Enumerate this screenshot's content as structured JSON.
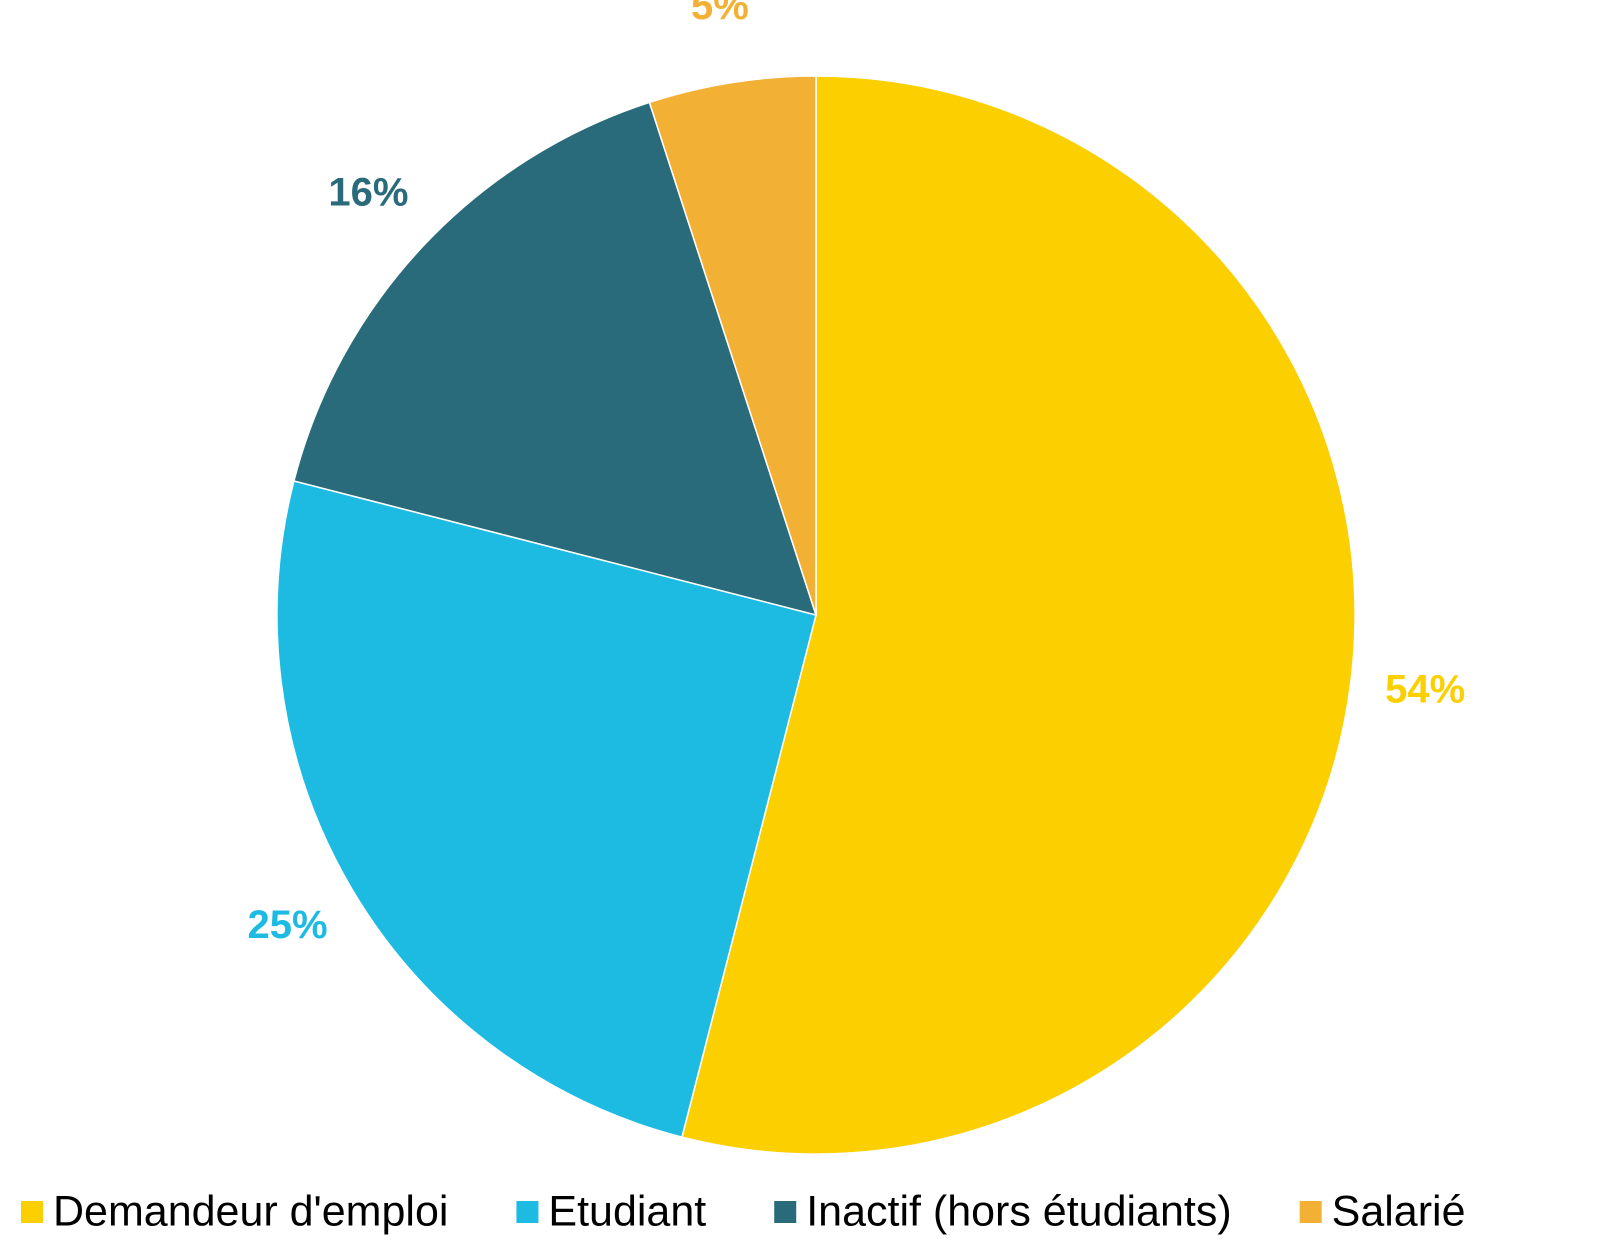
{
  "chart_data": {
    "type": "pie",
    "categories": [
      "Demandeur d'emploi",
      "Etudiant",
      "Inactif (hors étudiants)",
      "Salarié"
    ],
    "values": [
      54,
      25,
      16,
      5
    ],
    "value_labels": [
      "54%",
      "25%",
      "16%",
      "5%"
    ],
    "colors": [
      "#fbcf00",
      "#1dbbe2",
      "#296b7a",
      "#f2b035"
    ],
    "legend": "bottom"
  }
}
